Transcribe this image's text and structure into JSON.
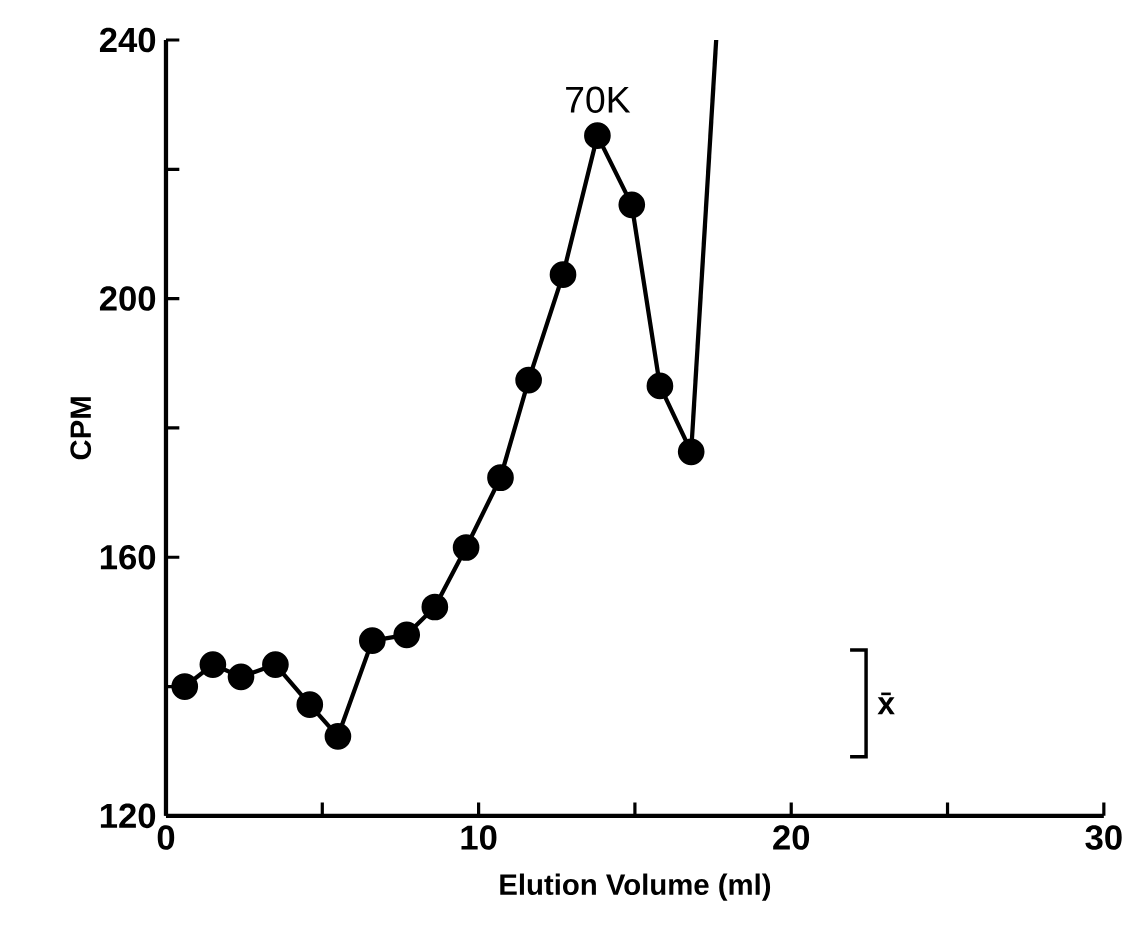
{
  "chart_data": {
    "type": "line",
    "xlabel": "Elution  Volume (ml)",
    "ylabel": "CPM",
    "marker": "circle",
    "xlim": [
      0,
      30
    ],
    "ylim": [
      120,
      240
    ],
    "xticks": [
      0,
      {
        "value": 5,
        "label": null
      },
      10,
      {
        "value": 15,
        "label": null
      },
      20,
      {
        "value": 25,
        "label": null
      },
      30
    ],
    "yticks": [
      120,
      {
        "value": 140,
        "label": null
      },
      160,
      {
        "value": 180,
        "label": null
      },
      200,
      {
        "value": 220,
        "label": null
      },
      240
    ],
    "series": [
      {
        "color": "#000000",
        "x": [
          0.6,
          1.5,
          2.4,
          3.5,
          4.6,
          5.5,
          6.6,
          7.7,
          8.6,
          9.6,
          10.7,
          11.6,
          12.7,
          13.8,
          14.9,
          15.8,
          16.8
        ],
        "values": [
          140,
          143.4,
          141.5,
          143.4,
          137.2,
          132.3,
          147.1,
          148,
          152.3,
          161.5,
          172.3,
          187.4,
          203.7,
          225.2,
          214.5,
          186.5,
          176.3
        ]
      },
      {
        "color": "#000000",
        "marker": "none",
        "x": [
          16.8,
          17.6
        ],
        "values": [
          176.3,
          240
        ]
      }
    ],
    "annotations": [
      {
        "text": "70K",
        "x": 13.8,
        "y": 225.2
      },
      "x̄"
    ]
  }
}
